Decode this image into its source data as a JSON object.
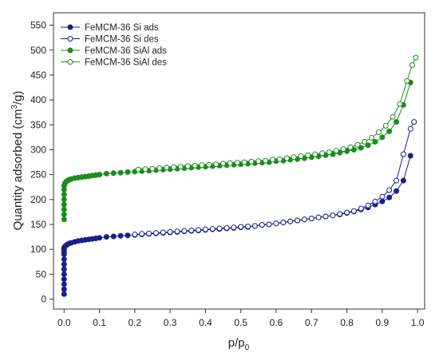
{
  "chart_data": {
    "type": "scatter",
    "xlabel_main": "p/p",
    "xlabel_sub": "0",
    "ylabel_main": "Quantity adsorbed (cm",
    "ylabel_sup": "3",
    "ylabel_end": "/g)",
    "xlim": [
      -0.03,
      1.02
    ],
    "ylim": [
      -20,
      575
    ],
    "xticks": [
      0.0,
      0.1,
      0.2,
      0.3,
      0.4,
      0.5,
      0.6,
      0.7,
      0.8,
      0.9,
      1.0
    ],
    "xtick_labels": [
      "0.0",
      "0.1",
      "0.2",
      "0.3",
      "0.4",
      "0.5",
      "0.6",
      "0.7",
      "0.8",
      "0.9",
      "1.0"
    ],
    "yticks": [
      0,
      50,
      100,
      150,
      200,
      250,
      300,
      350,
      400,
      450,
      500,
      550
    ],
    "ytick_labels": [
      "0",
      "50",
      "100",
      "150",
      "200",
      "250",
      "300",
      "350",
      "400",
      "450",
      "500",
      "550"
    ],
    "grid": false,
    "legend_position": "top-left",
    "series": [
      {
        "name": "FeMCM-36 Si ads",
        "color": "#1c1e8c",
        "marker": "filled-circle",
        "x": [
          0.0,
          0.0,
          0.0,
          0.0,
          0.0,
          0.0,
          0.0,
          0.0,
          0.0,
          0.0,
          0.0,
          0.0,
          0.003,
          0.006,
          0.01,
          0.015,
          0.02,
          0.03,
          0.04,
          0.05,
          0.06,
          0.07,
          0.08,
          0.09,
          0.1,
          0.12,
          0.14,
          0.16,
          0.18,
          0.2,
          0.22,
          0.24,
          0.26,
          0.28,
          0.3,
          0.32,
          0.34,
          0.36,
          0.38,
          0.4,
          0.42,
          0.44,
          0.46,
          0.48,
          0.5,
          0.52,
          0.54,
          0.56,
          0.58,
          0.6,
          0.62,
          0.64,
          0.66,
          0.68,
          0.7,
          0.72,
          0.74,
          0.76,
          0.78,
          0.8,
          0.82,
          0.84,
          0.86,
          0.88,
          0.9,
          0.92,
          0.94,
          0.96,
          0.98
        ],
        "y": [
          10,
          20,
          30,
          40,
          50,
          60,
          70,
          80,
          90,
          95,
          100,
          103,
          106,
          108,
          110,
          112,
          113,
          115,
          117,
          118,
          119,
          120,
          121,
          122,
          123,
          125,
          126,
          127,
          128,
          129,
          130,
          131,
          132,
          133,
          134,
          135,
          136,
          137,
          138,
          139,
          140,
          141,
          142,
          143,
          144,
          145,
          147,
          149,
          150,
          152,
          154,
          156,
          158,
          160,
          162,
          164,
          166,
          168,
          170,
          173,
          176,
          180,
          184,
          190,
          196,
          204,
          217,
          238,
          288
        ]
      },
      {
        "name": "FeMCM-36 Si des",
        "color": "#1c1e8c",
        "marker": "open-circle",
        "x": [
          0.99,
          0.98,
          0.96,
          0.94,
          0.92,
          0.9,
          0.88,
          0.86,
          0.84,
          0.82,
          0.8,
          0.78,
          0.76,
          0.74,
          0.72,
          0.7,
          0.68,
          0.66,
          0.64,
          0.62,
          0.6,
          0.58,
          0.56,
          0.54,
          0.52,
          0.5,
          0.48,
          0.46,
          0.44,
          0.42,
          0.4,
          0.38,
          0.36,
          0.34,
          0.32,
          0.3,
          0.28,
          0.26,
          0.24,
          0.22,
          0.2
        ],
        "y": [
          356,
          342,
          291,
          238,
          219,
          206,
          196,
          188,
          182,
          177,
          174,
          171,
          168,
          166,
          164,
          162,
          160,
          158,
          156,
          154,
          152,
          150,
          149,
          147,
          146,
          145,
          144,
          143,
          142,
          141,
          140,
          139,
          138,
          137,
          136,
          135,
          134,
          133,
          132,
          131,
          130
        ]
      },
      {
        "name": "FeMCM-36 SiAl ads",
        "color": "#1c8c1c",
        "marker": "filled-circle",
        "x": [
          0.0,
          0.0,
          0.0,
          0.0,
          0.0,
          0.0,
          0.0,
          0.0,
          0.003,
          0.006,
          0.01,
          0.015,
          0.02,
          0.03,
          0.04,
          0.05,
          0.06,
          0.07,
          0.08,
          0.09,
          0.1,
          0.12,
          0.14,
          0.16,
          0.18,
          0.2,
          0.22,
          0.24,
          0.26,
          0.28,
          0.3,
          0.32,
          0.34,
          0.36,
          0.38,
          0.4,
          0.42,
          0.44,
          0.46,
          0.48,
          0.5,
          0.52,
          0.54,
          0.56,
          0.58,
          0.6,
          0.62,
          0.64,
          0.66,
          0.68,
          0.7,
          0.72,
          0.74,
          0.76,
          0.78,
          0.8,
          0.82,
          0.84,
          0.86,
          0.88,
          0.9,
          0.92,
          0.94,
          0.96,
          0.98
        ],
        "y": [
          160,
          170,
          180,
          190,
          200,
          210,
          220,
          228,
          233,
          236,
          238,
          240,
          241,
          243,
          244,
          245,
          246,
          247,
          248,
          249,
          250,
          252,
          253,
          254,
          255,
          256,
          257,
          258,
          259,
          260,
          261,
          262,
          263,
          264,
          265,
          266,
          267,
          268,
          269,
          270,
          271,
          272,
          273,
          274,
          275,
          277,
          278,
          280,
          281,
          283,
          285,
          287,
          289,
          291,
          294,
          297,
          300,
          304,
          309,
          316,
          325,
          337,
          356,
          390,
          435
        ]
      },
      {
        "name": "FeMCM-36 SiAl des",
        "color": "#1c8c1c",
        "marker": "open-circle",
        "x": [
          0.995,
          0.985,
          0.97,
          0.95,
          0.93,
          0.91,
          0.89,
          0.87,
          0.85,
          0.83,
          0.81,
          0.79,
          0.77,
          0.75,
          0.73,
          0.71,
          0.69,
          0.67,
          0.65,
          0.63,
          0.61,
          0.59,
          0.57,
          0.55,
          0.53,
          0.51,
          0.49,
          0.47,
          0.45,
          0.43,
          0.41,
          0.39,
          0.37,
          0.35,
          0.33,
          0.31,
          0.29,
          0.27,
          0.25,
          0.23,
          0.21
        ],
        "y": [
          485,
          470,
          438,
          392,
          366,
          348,
          335,
          324,
          316,
          310,
          305,
          301,
          298,
          295,
          293,
          291,
          289,
          287,
          285,
          283,
          281,
          280,
          278,
          277,
          276,
          275,
          274,
          273,
          272,
          271,
          270,
          269,
          268,
          267,
          266,
          265,
          264,
          263,
          262,
          261,
          260
        ]
      }
    ]
  }
}
